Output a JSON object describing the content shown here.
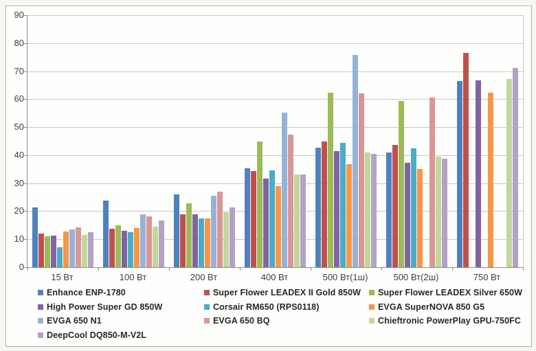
{
  "chart_data": {
    "type": "bar",
    "title": "",
    "xlabel": "",
    "ylabel": "",
    "ylim": [
      0,
      90
    ],
    "ytick_step": 10,
    "grid": true,
    "legend_position": "bottom",
    "legend_columns": 3,
    "categories": [
      "15 Вт",
      "100 Вт",
      "200 Вт",
      "400 Вт",
      "500 Вт(1ш)",
      "500 Вт(2ш)",
      "750 Вт"
    ],
    "series": [
      {
        "name": "Enhance ENP-1780",
        "color": "#4F81BD",
        "values": [
          21.3,
          23.8,
          26.0,
          35.3,
          42.7,
          40.9,
          66.5
        ]
      },
      {
        "name": "Super Flower LEADEX II Gold 850W",
        "color": "#C0504D",
        "values": [
          12.0,
          13.7,
          19.0,
          34.4,
          45.0,
          43.7,
          76.6
        ]
      },
      {
        "name": "Super Flower LEADEX Silver 650W",
        "color": "#9BBB59",
        "values": [
          11.0,
          15.0,
          22.7,
          45.0,
          62.4,
          59.3,
          null
        ]
      },
      {
        "name": "High Power Super GD 850W",
        "color": "#8064A2",
        "values": [
          11.2,
          12.9,
          18.9,
          31.7,
          41.5,
          37.2,
          66.6
        ]
      },
      {
        "name": "Corsair RM650 (RPS0118)",
        "color": "#4BACC6",
        "values": [
          7.0,
          12.5,
          17.4,
          34.5,
          44.3,
          42.5,
          null
        ]
      },
      {
        "name": "EVGA SuperNOVA 850 G5",
        "color": "#F79646",
        "values": [
          12.7,
          14.0,
          17.5,
          28.9,
          36.8,
          35.0,
          62.3
        ]
      },
      {
        "name": "EVGA 650 N1",
        "color": "#95B3D7",
        "values": [
          13.4,
          18.9,
          25.4,
          55.3,
          75.7,
          null,
          null
        ]
      },
      {
        "name": "EVGA 650 BQ",
        "color": "#D99694",
        "values": [
          14.2,
          18.2,
          27.0,
          47.3,
          62.0,
          60.5,
          null
        ]
      },
      {
        "name": "Chieftronic PowerPlay GPU-750FC",
        "color": "#C3D69B",
        "values": [
          11.6,
          14.5,
          19.7,
          33.1,
          41.0,
          39.6,
          67.2
        ]
      },
      {
        "name": "DeepCool DQ850-M-V2L",
        "color": "#B3A2C7",
        "values": [
          12.4,
          16.6,
          21.4,
          33.0,
          40.4,
          38.7,
          71.2
        ]
      }
    ]
  }
}
